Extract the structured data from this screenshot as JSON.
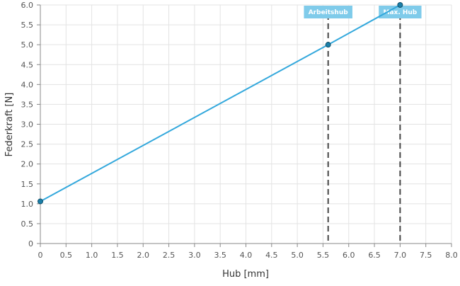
{
  "chart_data": {
    "type": "line",
    "xlabel": "Hub [mm]",
    "ylabel": "Federkraft [N]",
    "xlim": [
      0,
      8
    ],
    "ylim": [
      0,
      6
    ],
    "x_ticks": [
      "0",
      "0.5",
      "1.0",
      "1.5",
      "2.0",
      "2.5",
      "3.0",
      "3.5",
      "4.0",
      "4.5",
      "5.0",
      "5.5",
      "6.0",
      "6.5",
      "7.0",
      "7.5",
      "8.0"
    ],
    "y_ticks": [
      "0",
      "0.5",
      "1.0",
      "1.5",
      "2.0",
      "2.5",
      "3.0",
      "3.5",
      "4.0",
      "4.5",
      "5.0",
      "5.5",
      "6.0"
    ],
    "grid": true,
    "series": [
      {
        "x": [
          0,
          5.6,
          7.0
        ],
        "y": [
          1.06,
          5.0,
          6.0
        ],
        "color": "#33a8dc"
      }
    ],
    "markers": [
      {
        "x": 5.6,
        "label": "Arbeitshub"
      },
      {
        "x": 7.0,
        "label": "Max. Hub"
      }
    ],
    "colors": {
      "line": "#33a8dc",
      "point_fill": "#1b7fa8",
      "point_stroke": "#0f4f6b",
      "marker_line": "#444444",
      "marker_label_bg": "#7fcbea",
      "grid": "#e3e3e3",
      "axis": "#888888"
    }
  }
}
